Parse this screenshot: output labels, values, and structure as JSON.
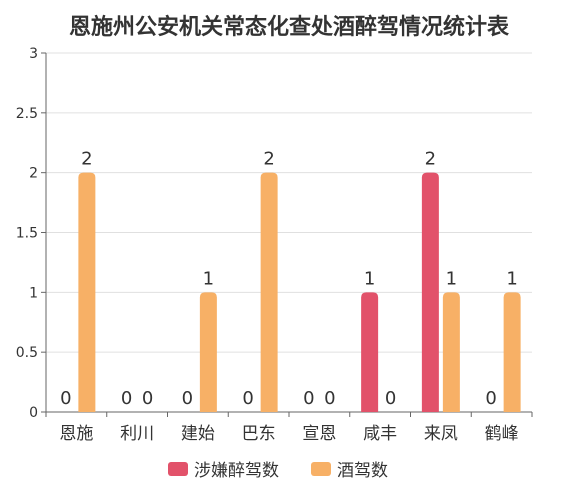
{
  "chart_data": {
    "type": "bar",
    "title": "恩施州公安机关常态化查处酒醉驾情况统计表",
    "categories": [
      "恩施",
      "利川",
      "建始",
      "巴东",
      "宣恩",
      "咸丰",
      "来凤",
      "鹤峰"
    ],
    "series": [
      {
        "name": "涉嫌醉驾数",
        "color": "#e2526a",
        "values": [
          0,
          0,
          0,
          0,
          0,
          1,
          2,
          0
        ]
      },
      {
        "name": "酒驾数",
        "color": "#f7b066",
        "values": [
          2,
          0,
          1,
          2,
          0,
          0,
          1,
          1
        ]
      }
    ],
    "yticks": [
      "0",
      "0.5",
      "1",
      "1.5",
      "2",
      "2.5",
      "3"
    ],
    "ylim": [
      0,
      3
    ],
    "grid": true,
    "legend_position": "bottom"
  }
}
